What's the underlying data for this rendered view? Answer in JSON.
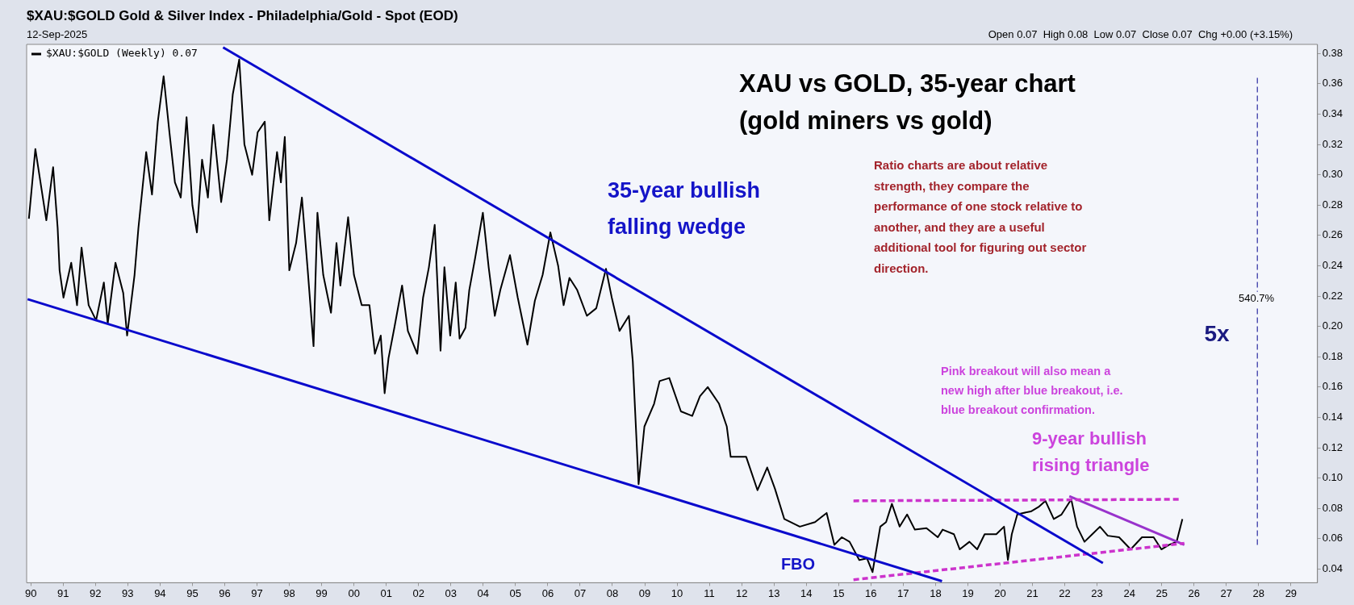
{
  "chart_data": {
    "type": "line",
    "title": "$XAU:$GOLD Gold & Silver Index - Philadelphia/Gold - Spot (EOD)",
    "subtitle": "12-Sep-2025",
    "xlim": [
      1989.87,
      2029.82
    ],
    "ylim": [
      0.031,
      0.386
    ],
    "xticks": [
      {
        "value": 1990,
        "label": "90"
      },
      {
        "value": 1991,
        "label": "91"
      },
      {
        "value": 1992,
        "label": "92"
      },
      {
        "value": 1993,
        "label": "93"
      },
      {
        "value": 1994,
        "label": "94"
      },
      {
        "value": 1995,
        "label": "95"
      },
      {
        "value": 1996,
        "label": "96"
      },
      {
        "value": 1997,
        "label": "97"
      },
      {
        "value": 1998,
        "label": "98"
      },
      {
        "value": 1999,
        "label": "99"
      },
      {
        "value": 2000,
        "label": "00"
      },
      {
        "value": 2001,
        "label": "01"
      },
      {
        "value": 2002,
        "label": "02"
      },
      {
        "value": 2003,
        "label": "03"
      },
      {
        "value": 2004,
        "label": "04"
      },
      {
        "value": 2005,
        "label": "05"
      },
      {
        "value": 2006,
        "label": "06"
      },
      {
        "value": 2007,
        "label": "07"
      },
      {
        "value": 2008,
        "label": "08"
      },
      {
        "value": 2009,
        "label": "09"
      },
      {
        "value": 2010,
        "label": "10"
      },
      {
        "value": 2011,
        "label": "11"
      },
      {
        "value": 2012,
        "label": "12"
      },
      {
        "value": 2013,
        "label": "13"
      },
      {
        "value": 2014,
        "label": "14"
      },
      {
        "value": 2015,
        "label": "15"
      },
      {
        "value": 2016,
        "label": "16"
      },
      {
        "value": 2017,
        "label": "17"
      },
      {
        "value": 2018,
        "label": "18"
      },
      {
        "value": 2019,
        "label": "19"
      },
      {
        "value": 2020,
        "label": "20"
      },
      {
        "value": 2021,
        "label": "21"
      },
      {
        "value": 2022,
        "label": "22"
      },
      {
        "value": 2023,
        "label": "23"
      },
      {
        "value": 2024,
        "label": "24"
      },
      {
        "value": 2025,
        "label": "25"
      },
      {
        "value": 2026,
        "label": "26"
      },
      {
        "value": 2027,
        "label": "27"
      },
      {
        "value": 2028,
        "label": "28"
      },
      {
        "value": 2029,
        "label": "29"
      }
    ],
    "yticks": [
      {
        "value": 0.04,
        "label": "0.04"
      },
      {
        "value": 0.06,
        "label": "0.06"
      },
      {
        "value": 0.08,
        "label": "0.08"
      },
      {
        "value": 0.1,
        "label": "0.10"
      },
      {
        "value": 0.12,
        "label": "0.12"
      },
      {
        "value": 0.14,
        "label": "0.14"
      },
      {
        "value": 0.16,
        "label": "0.16"
      },
      {
        "value": 0.18,
        "label": "0.18"
      },
      {
        "value": 0.2,
        "label": "0.20"
      },
      {
        "value": 0.22,
        "label": "0.22"
      },
      {
        "value": 0.24,
        "label": "0.24"
      },
      {
        "value": 0.26,
        "label": "0.26"
      },
      {
        "value": 0.28,
        "label": "0.28"
      },
      {
        "value": 0.3,
        "label": "0.30"
      },
      {
        "value": 0.32,
        "label": "0.32"
      },
      {
        "value": 0.34,
        "label": "0.34"
      },
      {
        "value": 0.36,
        "label": "0.36"
      },
      {
        "value": 0.38,
        "label": "0.38"
      }
    ],
    "grid": false,
    "legend": "top left",
    "marker": "none",
    "series": [
      {
        "name": "$XAU:$GOLD (Weekly) 0.07",
        "type": "line",
        "color": "#000000",
        "line_style": "solid",
        "x": [
          1989.94,
          1990.14,
          1990.48,
          1990.69,
          1990.83,
          1990.89,
          1991.01,
          1991.25,
          1991.43,
          1991.57,
          1991.79,
          1992.02,
          1992.26,
          1992.38,
          1992.62,
          1992.86,
          1992.98,
          1993.21,
          1993.33,
          1993.57,
          1993.75,
          1993.93,
          1994.11,
          1994.29,
          1994.46,
          1994.64,
          1994.82,
          1995.0,
          1995.14,
          1995.3,
          1995.48,
          1995.65,
          1995.89,
          1996.07,
          1996.25,
          1996.45,
          1996.61,
          1996.85,
          1997.02,
          1997.24,
          1997.38,
          1997.62,
          1997.74,
          1997.86,
          1998.0,
          1998.21,
          1998.39,
          1998.57,
          1998.75,
          1998.87,
          1999.05,
          1999.29,
          1999.46,
          1999.58,
          1999.82,
          2000.0,
          2000.24,
          2000.48,
          2000.65,
          2000.83,
          2000.95,
          2001.07,
          2001.25,
          2001.49,
          2001.67,
          2001.96,
          2002.14,
          2002.32,
          2002.5,
          2002.68,
          2002.8,
          2002.98,
          2003.15,
          2003.27,
          2003.45,
          2003.57,
          2003.75,
          2003.99,
          2004.17,
          2004.36,
          2004.53,
          2004.83,
          2005.07,
          2005.37,
          2005.6,
          2005.84,
          2006.08,
          2006.32,
          2006.49,
          2006.67,
          2006.91,
          2007.21,
          2007.5,
          2007.8,
          2007.98,
          2008.22,
          2008.51,
          2008.63,
          2008.81,
          2008.99,
          2009.29,
          2009.46,
          2009.76,
          2010.12,
          2010.47,
          2010.71,
          2010.95,
          2011.3,
          2011.54,
          2011.66,
          2012.14,
          2012.49,
          2012.79,
          2013.03,
          2013.32,
          2013.8,
          2014.27,
          2014.63,
          2014.87,
          2015.1,
          2015.34,
          2015.64,
          2015.88,
          2016.05,
          2016.29,
          2016.47,
          2016.65,
          2016.89,
          2017.12,
          2017.36,
          2017.72,
          2018.07,
          2018.22,
          2018.57,
          2018.75,
          2019.05,
          2019.29,
          2019.52,
          2019.88,
          2020.12,
          2020.24,
          2020.36,
          2020.53,
          2020.71,
          2020.95,
          2021.19,
          2021.4,
          2021.66,
          2021.9,
          2022.2,
          2022.38,
          2022.61,
          2022.85,
          2023.09,
          2023.33,
          2023.68,
          2024.04,
          2024.39,
          2024.75,
          2024.99,
          2025.23,
          2025.46,
          2025.64
        ],
        "values": [
          0.271,
          0.317,
          0.27,
          0.305,
          0.265,
          0.237,
          0.219,
          0.242,
          0.214,
          0.252,
          0.214,
          0.204,
          0.229,
          0.202,
          0.242,
          0.222,
          0.194,
          0.234,
          0.265,
          0.315,
          0.287,
          0.335,
          0.365,
          0.328,
          0.295,
          0.285,
          0.338,
          0.28,
          0.262,
          0.31,
          0.285,
          0.333,
          0.282,
          0.31,
          0.353,
          0.376,
          0.32,
          0.3,
          0.328,
          0.335,
          0.27,
          0.315,
          0.295,
          0.325,
          0.237,
          0.255,
          0.285,
          0.237,
          0.187,
          0.275,
          0.234,
          0.209,
          0.255,
          0.227,
          0.272,
          0.234,
          0.214,
          0.214,
          0.182,
          0.194,
          0.156,
          0.179,
          0.199,
          0.227,
          0.197,
          0.182,
          0.219,
          0.239,
          0.267,
          0.184,
          0.239,
          0.194,
          0.229,
          0.192,
          0.199,
          0.224,
          0.245,
          0.275,
          0.239,
          0.207,
          0.224,
          0.247,
          0.219,
          0.188,
          0.217,
          0.234,
          0.262,
          0.24,
          0.214,
          0.232,
          0.224,
          0.207,
          0.212,
          0.238,
          0.219,
          0.197,
          0.207,
          0.177,
          0.096,
          0.134,
          0.149,
          0.164,
          0.166,
          0.144,
          0.141,
          0.154,
          0.16,
          0.149,
          0.134,
          0.114,
          0.114,
          0.092,
          0.107,
          0.093,
          0.073,
          0.068,
          0.071,
          0.077,
          0.056,
          0.061,
          0.058,
          0.046,
          0.047,
          0.038,
          0.068,
          0.071,
          0.083,
          0.068,
          0.076,
          0.066,
          0.067,
          0.061,
          0.066,
          0.063,
          0.053,
          0.058,
          0.053,
          0.063,
          0.063,
          0.068,
          0.046,
          0.063,
          0.076,
          0.077,
          0.078,
          0.081,
          0.085,
          0.073,
          0.076,
          0.086,
          0.068,
          0.058,
          0.063,
          0.068,
          0.062,
          0.061,
          0.053,
          0.061,
          0.061,
          0.053,
          0.056,
          0.058,
          0.073
        ]
      },
      {
        "type": "line",
        "color": "#0a0acc",
        "line_style": "solid",
        "x": [
          1995.95,
          2023.18
        ],
        "values": [
          0.384,
          0.044
        ]
      },
      {
        "type": "line",
        "color": "#0a0acc",
        "line_style": "solid",
        "x": [
          1989.9,
          2018.2
        ],
        "values": [
          0.218,
          0.032
        ]
      },
      {
        "type": "line",
        "color": "#cc33cc",
        "line_style": "dashed",
        "x": [
          2015.46,
          2025.58
        ],
        "values": [
          0.085,
          0.086
        ]
      },
      {
        "type": "line",
        "color": "#cc33cc",
        "line_style": "dashed",
        "x": [
          2015.46,
          2025.7
        ],
        "values": [
          0.033,
          0.057
        ]
      },
      {
        "type": "line",
        "color": "#9933cc",
        "line_style": "solid",
        "x": [
          2022.14,
          2025.7
        ],
        "values": [
          0.088,
          0.056
        ]
      },
      {
        "type": "line",
        "color": "#2a2aa0",
        "line_style": "dashed",
        "x": [
          2027.96,
          2027.96
        ],
        "values": [
          0.056,
          0.366
        ]
      }
    ],
    "annotations": [
      "Open 0.07  High 0.08  Low 0.07  Close 0.07  Chg +0.00 (+3.15%)",
      "XAU vs GOLD, 35-year chart\n(gold miners vs gold)",
      "35-year bullish\nfalling wedge",
      "Ratio charts are about relative\nstrength, they compare the\nperformance of one stock relative to\nanother, and they are a useful\nadditional tool for figuring out sector\ndirection.",
      "Pink breakout will also mean a\nnew high after blue breakout, i.e.\nblue breakout confirmation.",
      "9-year bullish\nrising triangle",
      "FBO",
      "5x",
      {
        "text": "540.7%",
        "x": 2027.93,
        "y": 0.218
      }
    ]
  }
}
